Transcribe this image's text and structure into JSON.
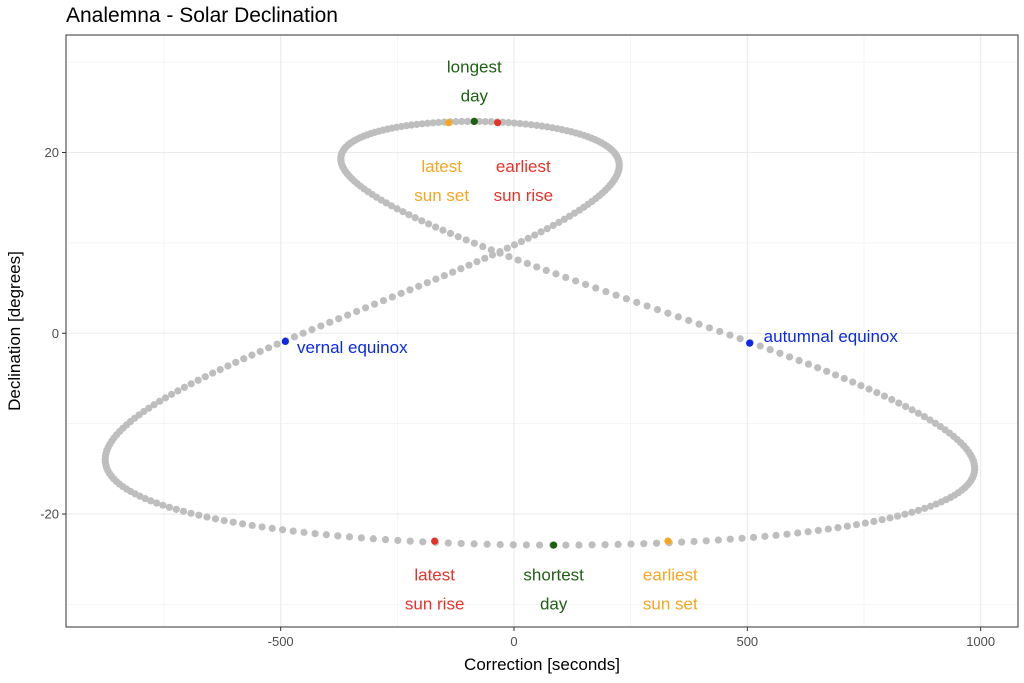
{
  "chart_data": {
    "type": "scatter",
    "title": "Analemna - Solar Declination",
    "xlabel": "Correction [seconds]",
    "ylabel": "Declination [degrees]",
    "xlim": [
      -960,
      1080
    ],
    "ylim": [
      -32.5,
      33
    ],
    "x_ticks": [
      -500,
      0,
      500,
      1000
    ],
    "y_ticks": [
      -20,
      0,
      20
    ],
    "x_tick_labels": [
      "-500",
      "0",
      "500",
      "1000"
    ],
    "y_tick_labels": [
      "-20",
      "0",
      "20"
    ],
    "grid": true,
    "base_color": "#bebebe",
    "series_points": [
      {
        "name": "vernal equinox",
        "x": -490,
        "y": -0.9,
        "color": "#0a2ae6"
      },
      {
        "name": "autumnal equinox",
        "x": 505,
        "y": -1.1,
        "color": "#0a2ae6"
      },
      {
        "name": "longest day",
        "x": -85,
        "y": 23.44,
        "color": "#1f5f14"
      },
      {
        "name": "shortest day",
        "x": 85,
        "y": -23.44,
        "color": "#1f5f14"
      },
      {
        "name": "latest sun set",
        "x": -140,
        "y": 23.3,
        "color": "#f5a623"
      },
      {
        "name": "earliest sun rise",
        "x": -35,
        "y": 23.3,
        "color": "#e6332a"
      },
      {
        "name": "latest sun rise",
        "x": -170,
        "y": -23.0,
        "color": "#e6332a"
      },
      {
        "name": "earliest sun set",
        "x": 330,
        "y": -23.0,
        "color": "#f5a623"
      }
    ],
    "annotations": [
      {
        "lines": [
          "longest",
          "day"
        ],
        "x": -85,
        "y": 29.5,
        "color": "#1f5f14"
      },
      {
        "lines": [
          "latest",
          "sun set"
        ],
        "x": -155,
        "y": 18.5,
        "color": "#f5a623"
      },
      {
        "lines": [
          "earliest",
          "sun rise"
        ],
        "x": 20,
        "y": 18.5,
        "color": "#e6332a"
      },
      {
        "lines": [
          "vernal equinox"
        ],
        "x": -465,
        "y": -1.5,
        "color": "#0a2ae6",
        "anchor": "start"
      },
      {
        "lines": [
          "autumnal equinox"
        ],
        "x": 535,
        "y": -0.3,
        "color": "#0a2ae6",
        "anchor": "start"
      },
      {
        "lines": [
          "latest",
          "sun rise"
        ],
        "x": -170,
        "y": -26.7,
        "color": "#e6332a"
      },
      {
        "lines": [
          "shortest",
          "day"
        ],
        "x": 85,
        "y": -26.7,
        "color": "#1f5f14"
      },
      {
        "lines": [
          "earliest",
          "sun set"
        ],
        "x": 335,
        "y": -26.7,
        "color": "#f5a623"
      }
    ]
  }
}
